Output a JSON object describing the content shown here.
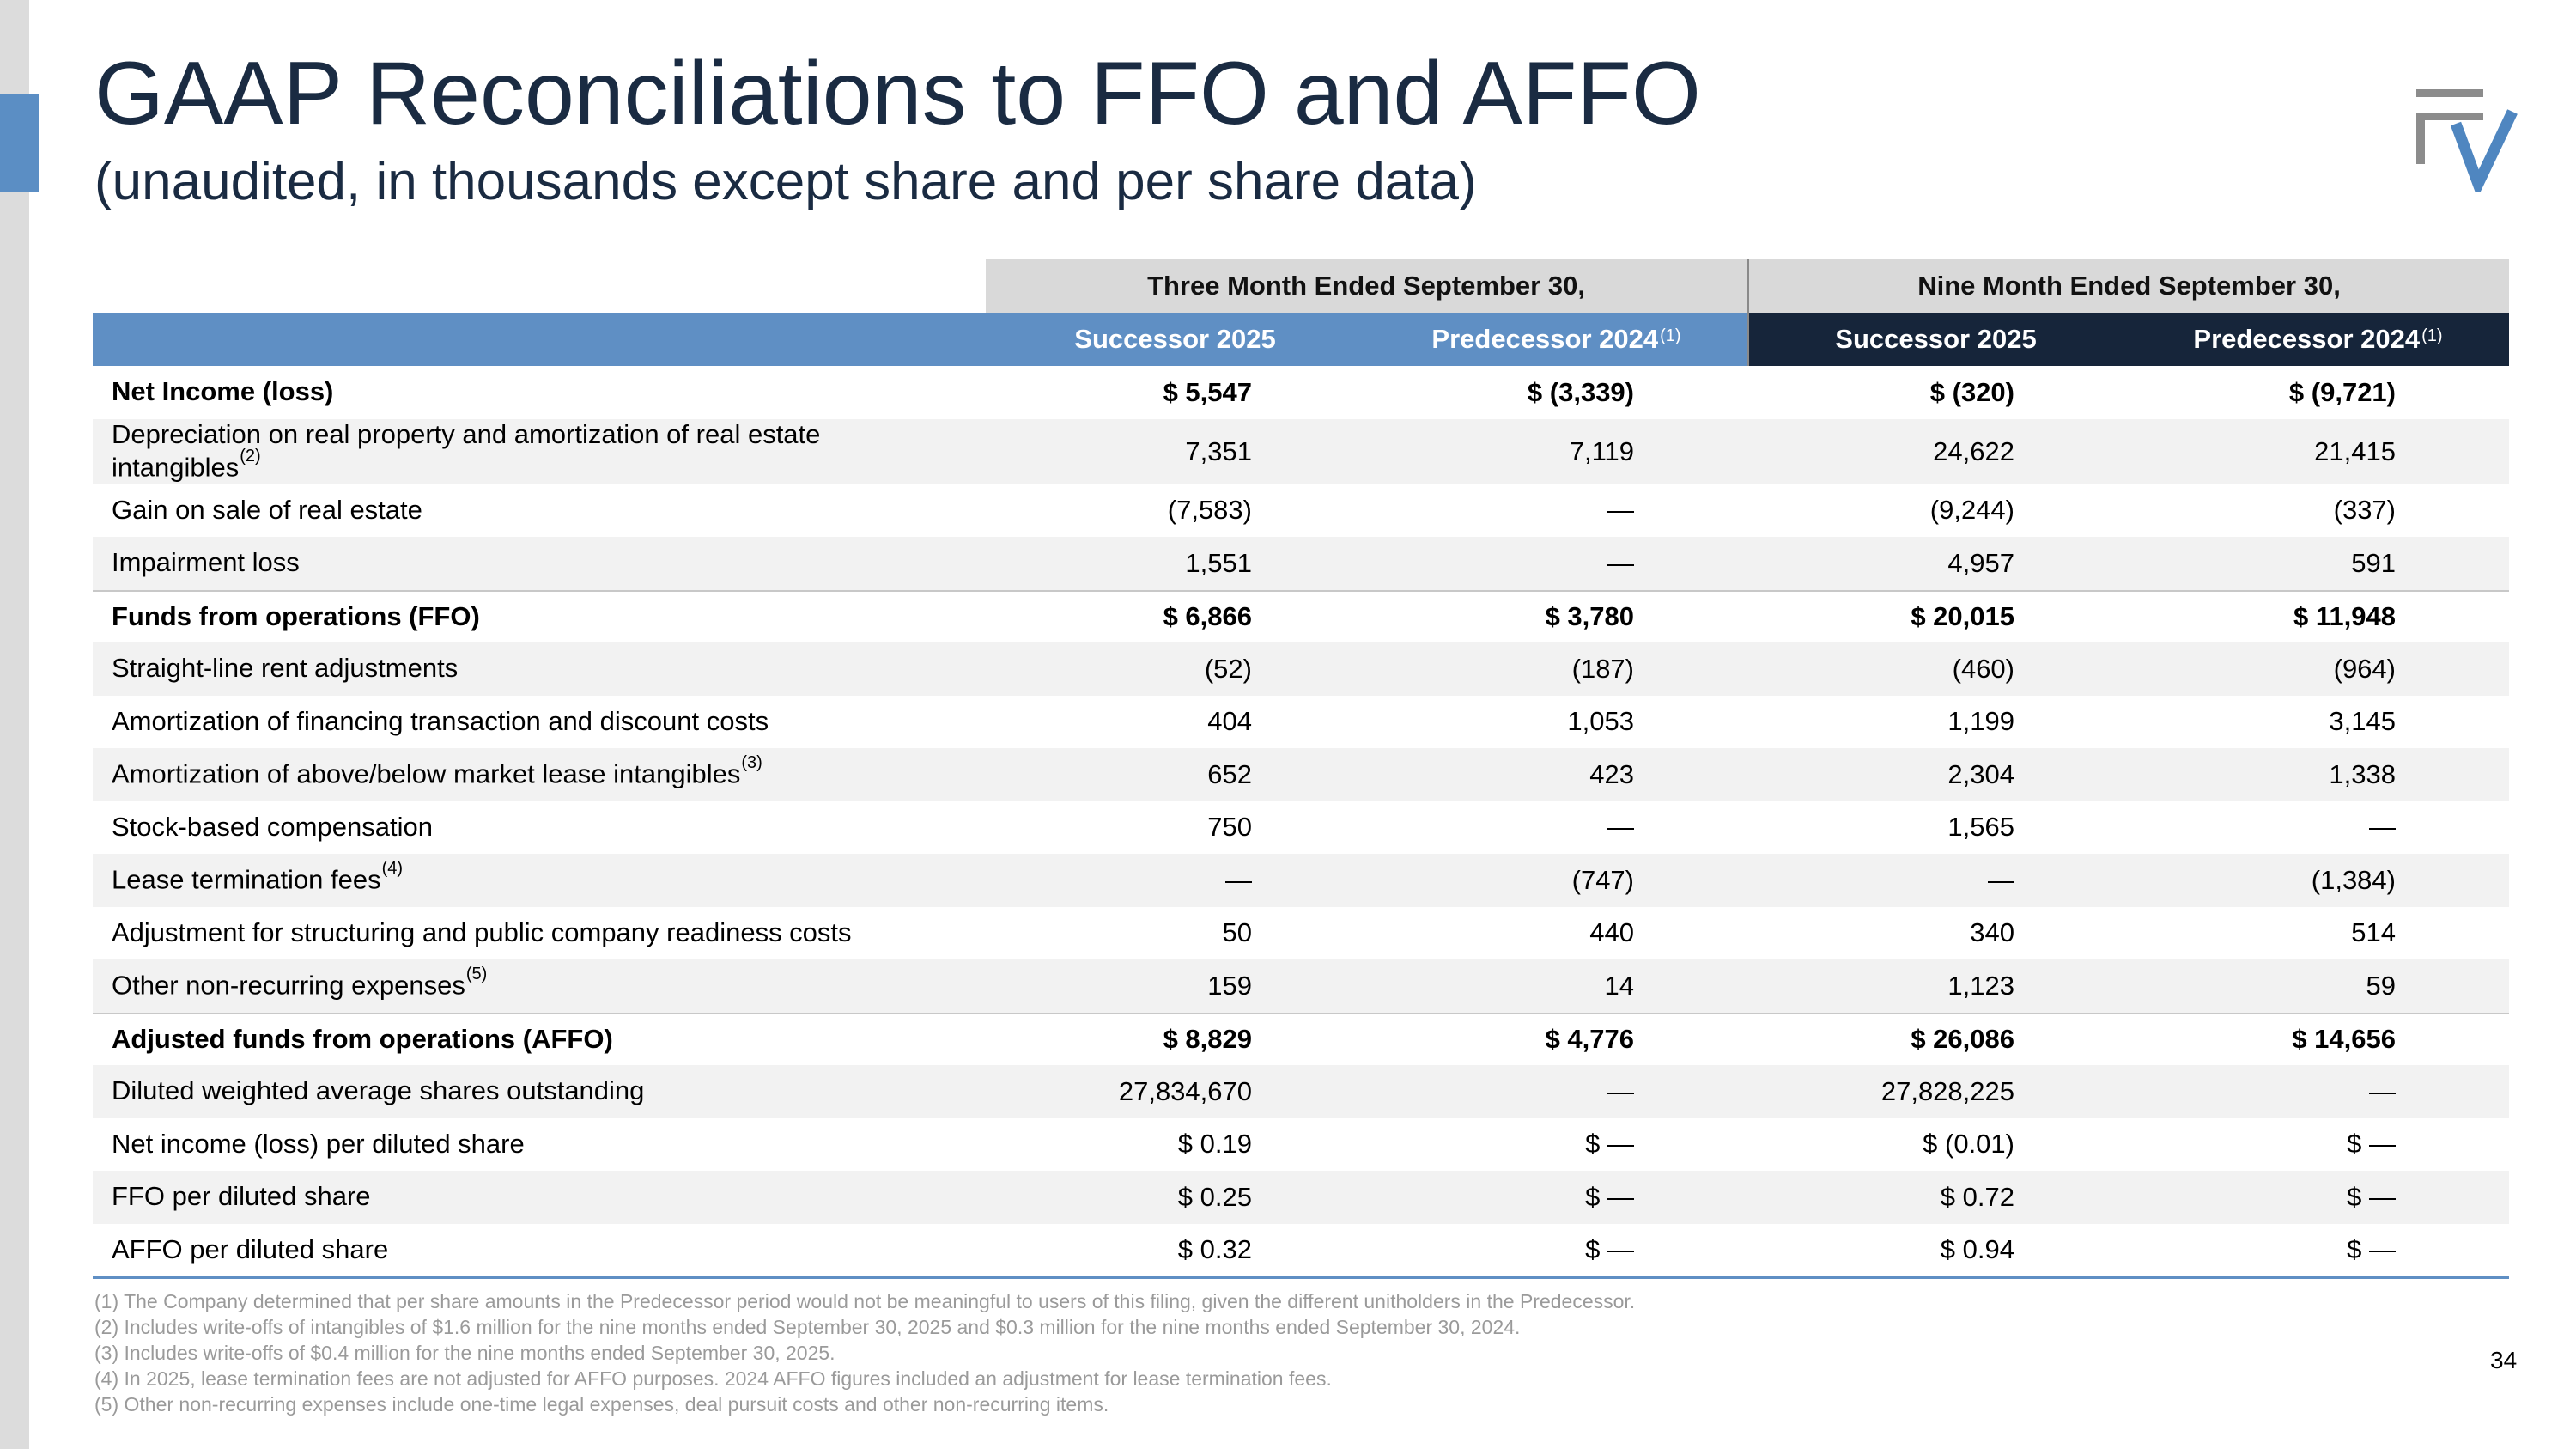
{
  "title": "GAAP Reconciliations to FFO and AFFO",
  "subtitle": "(unaudited, in thousands except share and per share data)",
  "table": {
    "group_headers": [
      "Three Month Ended September 30,",
      "Nine Month Ended September 30,"
    ],
    "columns": [
      {
        "label": "Successor 2025",
        "sup": ""
      },
      {
        "label": "Predecessor 2024",
        "sup": "(1)"
      },
      {
        "label": "Successor 2025",
        "sup": ""
      },
      {
        "label": "Predecessor 2024",
        "sup": "(1)"
      }
    ],
    "rows": [
      {
        "label": "Net Income (loss)",
        "sup": "",
        "values": [
          "$ 5,547",
          "$ (3,339)",
          "$ (320)",
          "$ (9,721)"
        ]
      },
      {
        "label": "Depreciation on real property and amortization of real estate intangibles",
        "sup": "(2)",
        "values": [
          "7,351",
          "7,119",
          "24,622",
          "21,415"
        ]
      },
      {
        "label": "Gain on sale of real estate",
        "sup": "",
        "values": [
          "(7,583)",
          "—",
          "(9,244)",
          "(337)"
        ]
      },
      {
        "label": "Impairment loss",
        "sup": "",
        "values": [
          "1,551",
          "—",
          "4,957",
          "591"
        ]
      },
      {
        "label": "Funds from operations (FFO)",
        "sup": "",
        "values": [
          "$ 6,866",
          "$ 3,780",
          "$ 20,015",
          "$ 11,948"
        ]
      },
      {
        "label": "Straight-line rent adjustments",
        "sup": "",
        "values": [
          "(52)",
          "(187)",
          "(460)",
          "(964)"
        ]
      },
      {
        "label": "Amortization of financing transaction and discount costs",
        "sup": "",
        "values": [
          "404",
          "1,053",
          "1,199",
          "3,145"
        ]
      },
      {
        "label": "Amortization of above/below market lease intangibles",
        "sup": "(3)",
        "values": [
          "652",
          "423",
          "2,304",
          "1,338"
        ]
      },
      {
        "label": "Stock-based compensation",
        "sup": "",
        "values": [
          "750",
          "—",
          "1,565",
          "—"
        ]
      },
      {
        "label": "Lease termination fees",
        "sup": "(4)",
        "values": [
          "—",
          "(747)",
          "—",
          "(1,384)"
        ]
      },
      {
        "label": "Adjustment for structuring and public company readiness costs",
        "sup": "",
        "values": [
          "50",
          "440",
          "340",
          "514"
        ]
      },
      {
        "label": "Other non-recurring expenses",
        "sup": "(5)",
        "values": [
          "159",
          "14",
          "1,123",
          "59"
        ]
      },
      {
        "label": "Adjusted funds from operations (AFFO)",
        "sup": "",
        "values": [
          "$ 8,829",
          "$ 4,776",
          "$ 26,086",
          "$ 14,656"
        ]
      },
      {
        "label": "Diluted weighted average shares outstanding",
        "sup": "",
        "values": [
          "27,834,670",
          "—",
          "27,828,225",
          "—"
        ]
      },
      {
        "label": "Net income (loss) per diluted share",
        "sup": "",
        "values": [
          "$ 0.19",
          "$ —",
          "$ (0.01)",
          "$ —"
        ]
      },
      {
        "label": "FFO per diluted share",
        "sup": "",
        "values": [
          "$ 0.25",
          "$ —",
          "$ 0.72",
          "$ —"
        ]
      },
      {
        "label": "AFFO per diluted share",
        "sup": "",
        "values": [
          "$ 0.32",
          "$ —",
          "$ 0.94",
          "$ —"
        ]
      }
    ]
  },
  "footnotes": [
    "(1) The Company determined that per share amounts in the Predecessor period would not be meaningful to users of this filing, given the different unitholders in the Predecessor.",
    "(2) Includes write-offs of intangibles of $1.6 million for the nine months ended September 30, 2025 and $0.3 million for the nine months ended September 30, 2024.",
    "(3) Includes write-offs of $0.4 million for the nine months ended September 30, 2025.",
    "(4) In 2025, lease termination fees are not adjusted for AFFO purposes. 2024 AFFO figures included an adjustment for lease termination fees.",
    "(5) Other non-recurring expenses include one-time legal expenses, deal pursuit costs and other non-recurring items."
  ],
  "page_number": "34",
  "colors": {
    "accent_blue": "#5f8fc4",
    "navy": "#16253a",
    "title": "#1a2b42",
    "logo_gray": "#8c8c8c",
    "logo_blue": "#4f86c0"
  },
  "logo_icon": "fv-logo-icon"
}
